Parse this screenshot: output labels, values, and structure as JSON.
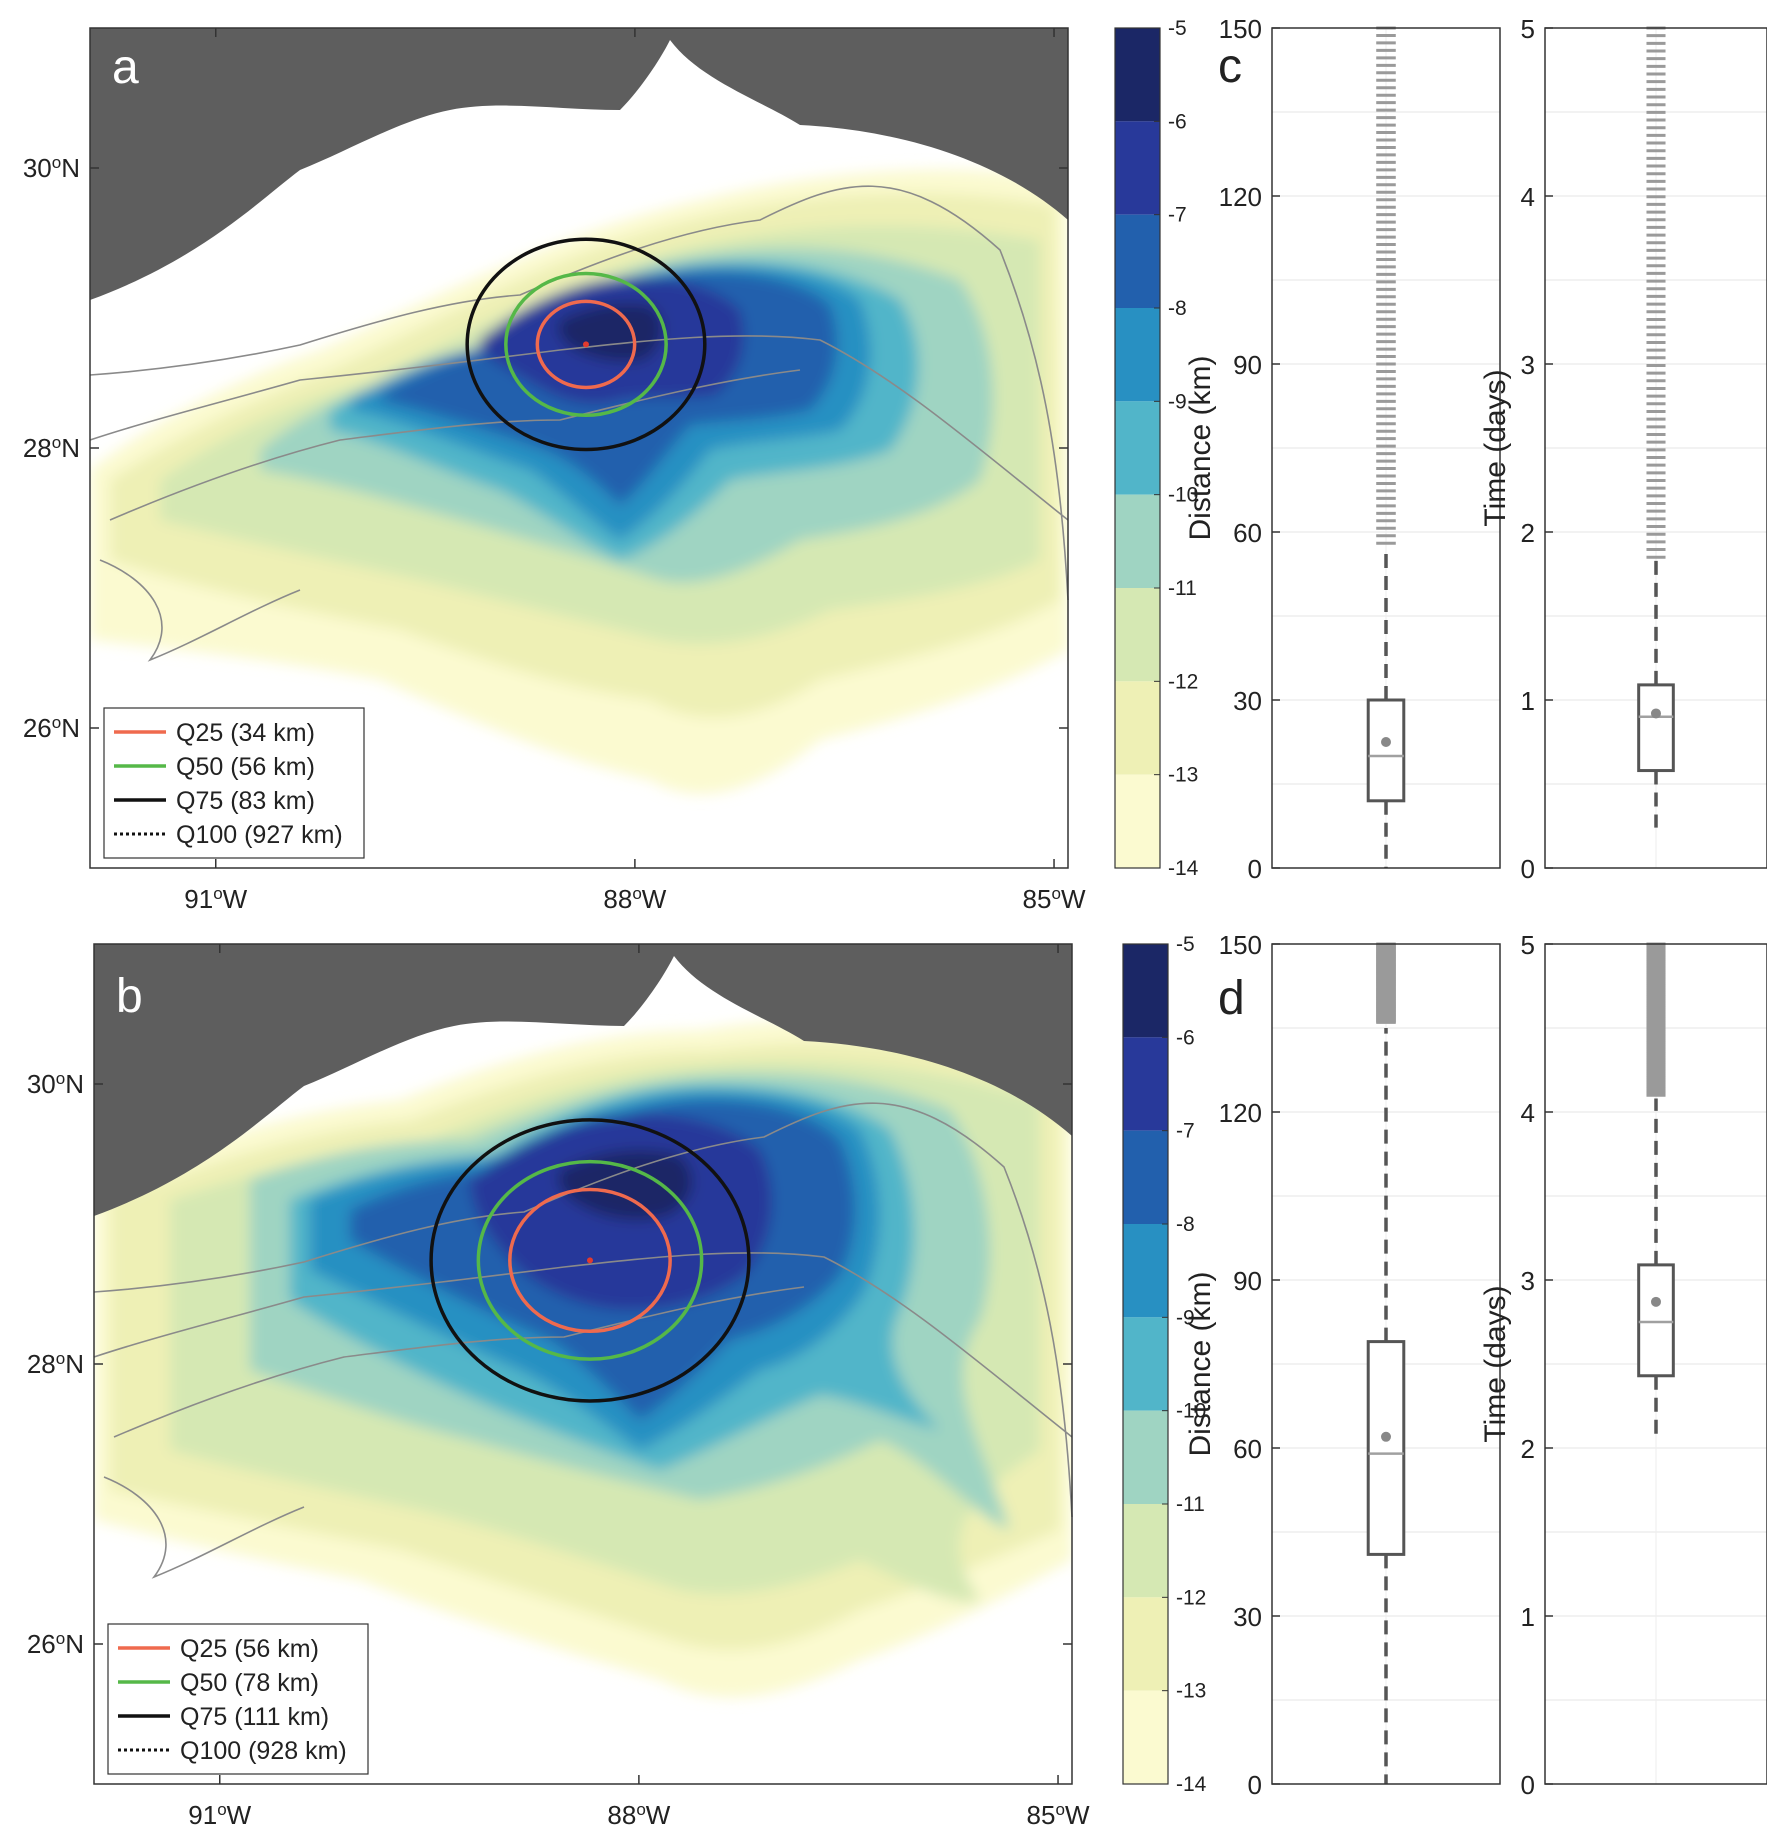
{
  "chart_data": [
    {
      "type": "heatmap",
      "panel": "a",
      "colorbar": {
        "levels": [
          -5,
          -6,
          -7,
          -8,
          -9,
          -10,
          -11,
          -12,
          -13,
          -14
        ],
        "labels": [
          "-5",
          "-6",
          "-7",
          "-8",
          "-9",
          "-10",
          "-11",
          "-12",
          "-13",
          "-14"
        ],
        "range": [
          -14,
          -5
        ]
      },
      "xlim": [
        -91.9,
        -84.9
      ],
      "ylim": [
        25.0,
        31.0
      ],
      "x_ticks": [
        {
          "value": -91,
          "label": "91°W"
        },
        {
          "value": -88,
          "label": "88°W"
        },
        {
          "value": -85,
          "label": "85°W"
        }
      ],
      "y_ticks": [
        {
          "value": 30,
          "label": "30°N"
        },
        {
          "value": 28,
          "label": "28°N"
        },
        {
          "value": 26,
          "label": "26°N"
        }
      ],
      "release_point": {
        "lon": -88.35,
        "lat": 28.74
      },
      "circles": [
        {
          "name": "Q25",
          "radius_km": 34,
          "color": "#ef6a4e"
        },
        {
          "name": "Q50",
          "radius_km": 56,
          "color": "#55b848"
        },
        {
          "name": "Q75",
          "radius_km": 83,
          "color": "#111111"
        }
      ],
      "legend": [
        {
          "label": "Q25 (34 km)",
          "color": "#ef6a4e",
          "style": "solid"
        },
        {
          "label": "Q50 (56 km)",
          "color": "#55b848",
          "style": "solid"
        },
        {
          "label": "Q75 (83 km)",
          "color": "#111111",
          "style": "solid"
        },
        {
          "label": "Q100 (927 km)",
          "color": "#111111",
          "style": "dotted"
        }
      ],
      "legend_position": "bottom-left"
    },
    {
      "type": "heatmap",
      "panel": "b",
      "colorbar": {
        "levels": [
          -5,
          -6,
          -7,
          -8,
          -9,
          -10,
          -11,
          -12,
          -13,
          -14
        ],
        "labels": [
          "-5",
          "-6",
          "-7",
          "-8",
          "-9",
          "-10",
          "-11",
          "-12",
          "-13",
          "-14"
        ],
        "range": [
          -14,
          -5
        ]
      },
      "xlim": [
        -91.9,
        -84.9
      ],
      "ylim": [
        25.0,
        31.0
      ],
      "x_ticks": [
        {
          "value": -91,
          "label": "91°W"
        },
        {
          "value": -88,
          "label": "88°W"
        },
        {
          "value": -85,
          "label": "85°W"
        }
      ],
      "y_ticks": [
        {
          "value": 30,
          "label": "30°N"
        },
        {
          "value": 28,
          "label": "28°N"
        },
        {
          "value": 26,
          "label": "26°N"
        }
      ],
      "release_point": {
        "lon": -88.35,
        "lat": 28.74
      },
      "circles": [
        {
          "name": "Q25",
          "radius_km": 56,
          "color": "#ef6a4e"
        },
        {
          "name": "Q50",
          "radius_km": 78,
          "color": "#55b848"
        },
        {
          "name": "Q75",
          "radius_km": 111,
          "color": "#111111"
        }
      ],
      "legend": [
        {
          "label": "Q25 (56 km)",
          "color": "#ef6a4e",
          "style": "solid"
        },
        {
          "label": "Q50 (78 km)",
          "color": "#55b848",
          "style": "solid"
        },
        {
          "label": "Q75 (111 km)",
          "color": "#111111",
          "style": "solid"
        },
        {
          "label": "Q100 (928 km)",
          "color": "#111111",
          "style": "dotted"
        }
      ],
      "legend_position": "bottom-left"
    },
    {
      "type": "box",
      "panel": "c",
      "ylabel": "Distance (km)",
      "ylim": [
        0,
        150
      ],
      "yticks": [
        0,
        30,
        60,
        90,
        120,
        150
      ],
      "grid": true,
      "box": {
        "whisker_low": 0,
        "q1": 12,
        "median": 20,
        "mean": 22.5,
        "q3": 30,
        "whisker_high": 57,
        "outliers_from": 58,
        "outliers_to": 150
      }
    },
    {
      "type": "box",
      "panel": "c",
      "ylabel": "Time (days)",
      "ylim": [
        0,
        5
      ],
      "yticks": [
        0,
        1,
        2,
        3,
        4,
        5
      ],
      "grid": true,
      "box": {
        "whisker_low": 0.24,
        "q1": 0.58,
        "median": 0.9,
        "mean": 0.92,
        "q3": 1.09,
        "whisker_high": 1.83,
        "outliers_from": 1.85,
        "outliers_to": 5.0
      }
    },
    {
      "type": "box",
      "panel": "d",
      "ylabel": "Distance (km)",
      "ylim": [
        0,
        150
      ],
      "yticks": [
        0,
        30,
        60,
        90,
        120,
        150
      ],
      "grid": true,
      "box": {
        "whisker_low": 0,
        "q1": 41,
        "median": 59,
        "mean": 62,
        "q3": 79,
        "whisker_high": 135,
        "outliers_from": 136,
        "outliers_to": 150
      }
    },
    {
      "type": "box",
      "panel": "d",
      "ylabel": "Time (days)",
      "ylim": [
        0,
        5
      ],
      "yticks": [
        0,
        1,
        2,
        3,
        4,
        5
      ],
      "grid": true,
      "box": {
        "whisker_low": 2.05,
        "q1": 2.43,
        "median": 2.75,
        "mean": 2.87,
        "q3": 3.09,
        "whisker_high": 4.08,
        "outliers_from": 4.1,
        "outliers_to": 5.0
      }
    }
  ],
  "panel_letters": [
    "a",
    "b",
    "c",
    "d"
  ]
}
